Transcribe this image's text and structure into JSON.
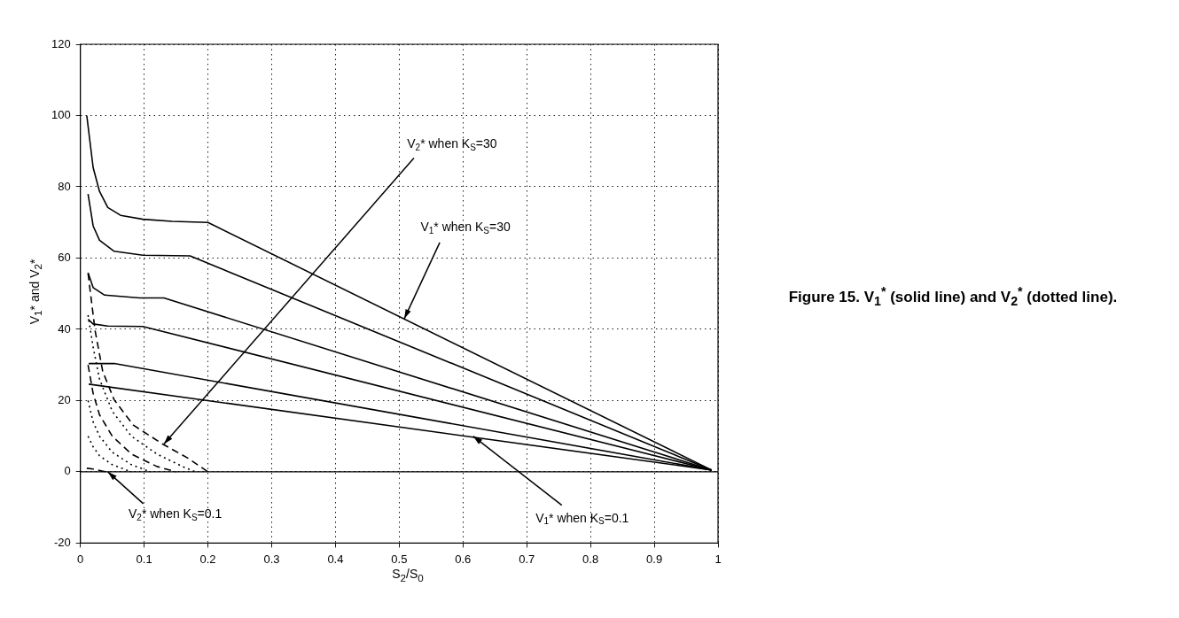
{
  "chart_data": {
    "type": "line",
    "title": "Figure 15. V$_{1}$$^{*}$ (solid line) and V$_{2}$$^{*}$ (dotted line).",
    "xlabel": "S$_{2}$/S$_{0}$",
    "ylabel": "V$_{1}$* and V$_{2}$*",
    "xlim": [
      0,
      1
    ],
    "ylim": [
      -20,
      120
    ],
    "xticks": [
      0,
      0.1,
      0.2,
      0.3,
      0.4,
      0.5,
      0.6,
      0.7,
      0.8,
      0.9,
      1
    ],
    "yticks": [
      -20,
      0,
      20,
      40,
      60,
      80,
      100,
      120
    ],
    "grid": true,
    "ref_lines": [
      {
        "axis": "y",
        "value": 0,
        "color": "#000000",
        "line_style": "solid"
      }
    ],
    "annotations": [
      {
        "text": "V$_{2}$* when K$_{S}$=30",
        "x": 0.131,
        "y": 7.8
      },
      {
        "text": "V$_{1}$* when K$_{S}$=30",
        "x": 0.508,
        "y": 43
      },
      {
        "text": "V$_{2}$* when K$_{S}$=0.1",
        "x": 0.043,
        "y": 0
      },
      {
        "text": "V$_{1}$* when K$_{S}$=0.1",
        "x": 0.616,
        "y": 10
      }
    ],
    "series": [
      {
        "color": "#000000",
        "line_style": "solid",
        "x": [
          0.01,
          0.02,
          0.03,
          0.043,
          0.063,
          0.098,
          0.144,
          0.2,
          0.99
        ],
        "values": [
          100,
          85.4,
          78.7,
          74.2,
          72,
          70.9,
          70.3,
          70,
          0.5
        ]
      },
      {
        "color": "#000000",
        "line_style": "solid",
        "x": [
          0.012,
          0.02,
          0.03,
          0.053,
          0.098,
          0.172,
          0.99
        ],
        "values": [
          78,
          69,
          65,
          61.9,
          60.8,
          60.6,
          0.5
        ]
      },
      {
        "color": "#000000",
        "line_style": "solid",
        "x": [
          0.012,
          0.02,
          0.038,
          0.093,
          0.131,
          0.99
        ],
        "values": [
          55.9,
          51.7,
          49.6,
          48.8,
          48.8,
          0.5
        ]
      },
      {
        "color": "#000000",
        "line_style": "solid",
        "x": [
          0.012,
          0.02,
          0.043,
          0.098,
          0.99
        ],
        "values": [
          42.8,
          41.5,
          40.9,
          40.8,
          0.5
        ]
      },
      {
        "color": "#000000",
        "line_style": "solid",
        "x": [
          0.013,
          0.053,
          0.99
        ],
        "values": [
          30.4,
          30.4,
          0.5
        ]
      },
      {
        "color": "#000000",
        "line_style": "solid",
        "x": [
          0.013,
          0.99
        ],
        "values": [
          24.6,
          0.5
        ]
      },
      {
        "color": "#000000",
        "line_style": "dashed",
        "x": [
          0.012,
          0.023,
          0.035,
          0.053,
          0.083,
          0.129,
          0.169,
          0.2
        ],
        "values": [
          55.7,
          39.7,
          28.2,
          20.2,
          13.1,
          7.8,
          3.8,
          0
        ]
      },
      {
        "color": "#000000",
        "line_style": "dotted",
        "x": [
          0.012,
          0.02,
          0.03,
          0.05,
          0.08,
          0.12,
          0.16,
          0.18
        ],
        "values": [
          44,
          35,
          26,
          17,
          10,
          5,
          1.5,
          0
        ]
      },
      {
        "color": "#000000",
        "line_style": "dashed",
        "x": [
          0.012,
          0.02,
          0.03,
          0.05,
          0.08,
          0.12,
          0.15
        ],
        "values": [
          30,
          22,
          16,
          10,
          5,
          1.5,
          0
        ]
      },
      {
        "color": "#000000",
        "line_style": "dotted",
        "x": [
          0.012,
          0.02,
          0.03,
          0.05,
          0.08,
          0.11
        ],
        "values": [
          20,
          14,
          10,
          5.5,
          2,
          0
        ]
      },
      {
        "color": "#000000",
        "line_style": "dotted",
        "x": [
          0.012,
          0.02,
          0.03,
          0.05,
          0.08
        ],
        "values": [
          10,
          7,
          4.5,
          2,
          0
        ]
      },
      {
        "color": "#000000",
        "line_style": "dashed",
        "x": [
          0.01,
          0.02,
          0.04
        ],
        "values": [
          1,
          0.8,
          0
        ]
      }
    ]
  }
}
